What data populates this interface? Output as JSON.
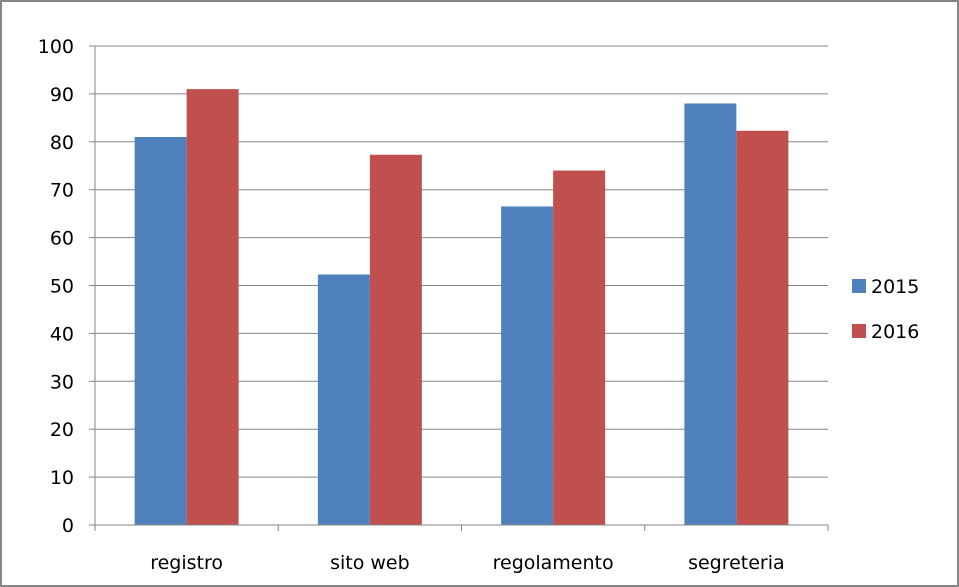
{
  "chart_data": {
    "type": "bar",
    "title": "",
    "xlabel": "",
    "ylabel": "",
    "categories": [
      "registro",
      "sito web",
      "regolamento",
      "segreteria"
    ],
    "series": [
      {
        "name": "2015",
        "values": [
          81,
          52.3,
          66.5,
          88
        ],
        "color": "#4F81BD"
      },
      {
        "name": "2016",
        "values": [
          91,
          77.3,
          74,
          82.3
        ],
        "color": "#C0504D"
      }
    ],
    "ylim": [
      0,
      100
    ],
    "yticks": [
      0,
      10,
      20,
      30,
      40,
      50,
      60,
      70,
      80,
      90,
      100
    ],
    "grid": true,
    "legend_position": "right"
  }
}
